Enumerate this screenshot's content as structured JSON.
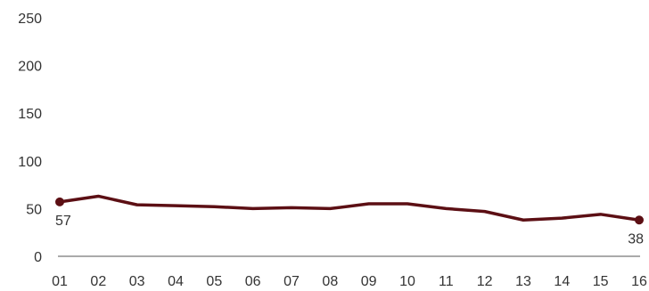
{
  "chart_data": {
    "type": "line",
    "categories": [
      "01",
      "02",
      "03",
      "04",
      "05",
      "06",
      "07",
      "08",
      "09",
      "10",
      "11",
      "12",
      "13",
      "14",
      "15",
      "16"
    ],
    "series": [
      {
        "name": "",
        "values": [
          57,
          63,
          54,
          53,
          52,
          50,
          51,
          50,
          55,
          55,
          50,
          47,
          38,
          40,
          44,
          38
        ]
      }
    ],
    "ylim": [
      0,
      250
    ],
    "yticks": [
      0,
      50,
      100,
      150,
      200,
      250
    ],
    "grid": false,
    "title": "",
    "xlabel": "",
    "ylabel": "",
    "data_labels": [
      {
        "index": 0,
        "text": "57"
      },
      {
        "index": 15,
        "text": "38"
      }
    ],
    "marker_indices": [
      0,
      15
    ],
    "line_color": "#5c0f14",
    "axis_color": "#555555"
  }
}
